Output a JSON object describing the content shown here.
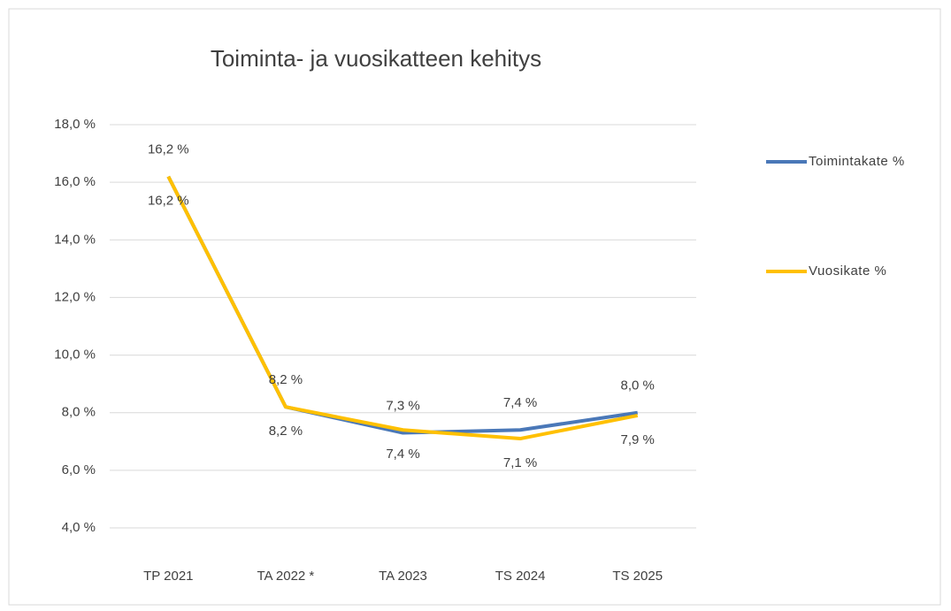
{
  "chart_data": {
    "type": "line",
    "title": "Toiminta- ja vuosikatteen kehitys",
    "categories": [
      "TP 2021",
      "TA 2022 *",
      "TA 2023",
      "TS 2024",
      "TS 2025"
    ],
    "series": [
      {
        "name": "Toimintakate %",
        "color": "#4a78b8",
        "values": [
          16.2,
          8.2,
          7.3,
          7.4,
          8.0
        ],
        "value_labels": [
          "16,2 %",
          "8,2 %",
          "7,3 %",
          "7,4 %",
          "8,0 %"
        ]
      },
      {
        "name": "Vuosikate %",
        "color": "#ffc000",
        "values": [
          16.2,
          8.2,
          7.4,
          7.1,
          7.9
        ],
        "value_labels": [
          "16,2 %",
          "8,2 %",
          "7,4 %",
          "7,1 %",
          "7,9 %"
        ]
      }
    ],
    "ylim": [
      4,
      18
    ],
    "yticks": [
      {
        "value": 4,
        "label": "4,0 %"
      },
      {
        "value": 6,
        "label": "6,0 %"
      },
      {
        "value": 8,
        "label": "8,0 %"
      },
      {
        "value": 10,
        "label": "10,0 %"
      },
      {
        "value": 12,
        "label": "12,0 %"
      },
      {
        "value": 14,
        "label": "14,0 %"
      },
      {
        "value": 16,
        "label": "16,0 %"
      },
      {
        "value": 18,
        "label": "18,0 %"
      }
    ],
    "grid": true,
    "legend": "right"
  }
}
